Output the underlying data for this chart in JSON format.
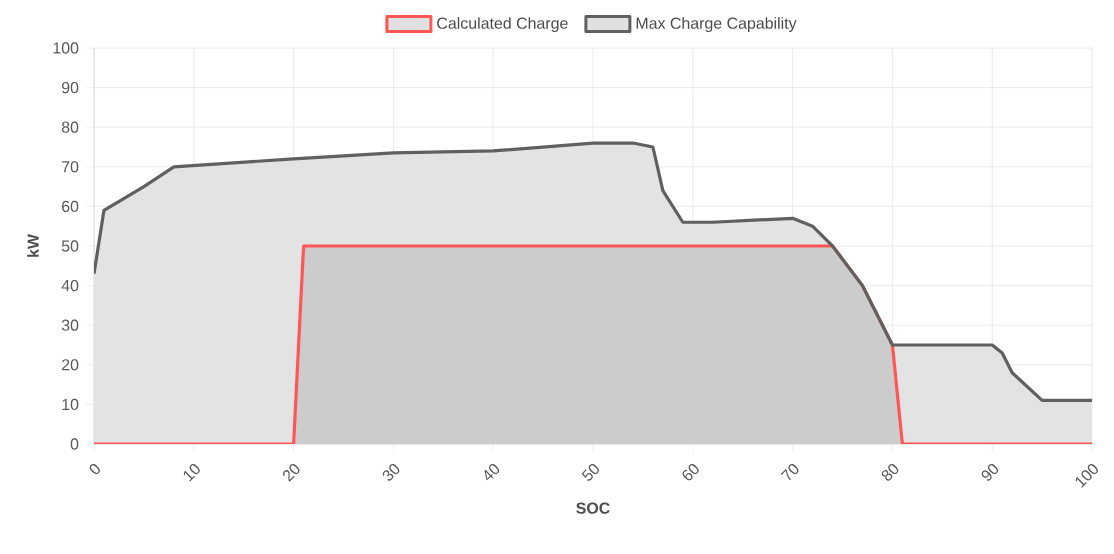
{
  "chart_data": {
    "type": "area",
    "xlabel": "SOC",
    "ylabel": "kW",
    "xlim": [
      0,
      100
    ],
    "ylim": [
      0,
      100
    ],
    "xticks": [
      0,
      10,
      20,
      30,
      40,
      50,
      60,
      70,
      80,
      90,
      100
    ],
    "yticks": [
      0,
      10,
      20,
      30,
      40,
      50,
      60,
      70,
      80,
      90,
      100
    ],
    "grid": true,
    "legend": "top",
    "line_style": "solid",
    "marker": "none",
    "series": [
      {
        "name": "Calculated Charge",
        "color": "#ff5757",
        "x": [
          0,
          20,
          21,
          74,
          77,
          80,
          81,
          100
        ],
        "values": [
          0,
          0,
          50,
          50,
          40,
          25,
          0,
          0
        ]
      },
      {
        "name": "Max Charge Capability",
        "color": "#606060",
        "x": [
          0,
          1,
          5,
          8,
          20,
          30,
          40,
          50,
          54,
          56,
          57,
          59,
          62,
          70,
          72,
          74,
          77,
          80,
          90,
          91,
          92,
          95,
          100
        ],
        "values": [
          43,
          59,
          65,
          70,
          72,
          73.5,
          74,
          76,
          76,
          75,
          64,
          56,
          56,
          57,
          55,
          50,
          40,
          25,
          25,
          23,
          18,
          11,
          11
        ]
      }
    ]
  }
}
